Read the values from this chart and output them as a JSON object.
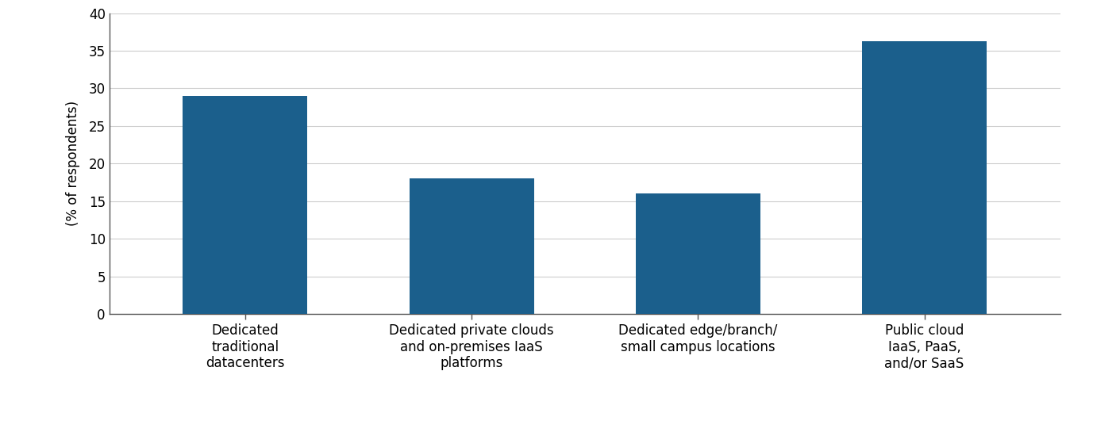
{
  "categories": [
    "Dedicated\ntraditional\ndatacenters",
    "Dedicated private clouds\nand on-premises IaaS\nplatforms",
    "Dedicated edge/branch/\nsmall campus locations",
    "Public cloud\nIaaS, PaaS,\nand/or SaaS"
  ],
  "values": [
    29.0,
    18.0,
    16.0,
    36.3
  ],
  "bar_color": "#1b5f8c",
  "ylabel": "(% of respondents)",
  "ylim": [
    0,
    40
  ],
  "yticks": [
    0,
    5,
    10,
    15,
    20,
    25,
    30,
    35,
    40
  ],
  "background_color": "#ffffff",
  "grid_color": "#cccccc",
  "tick_label_fontsize": 12,
  "ylabel_fontsize": 12,
  "bar_width": 0.55,
  "spine_color": "#555555"
}
